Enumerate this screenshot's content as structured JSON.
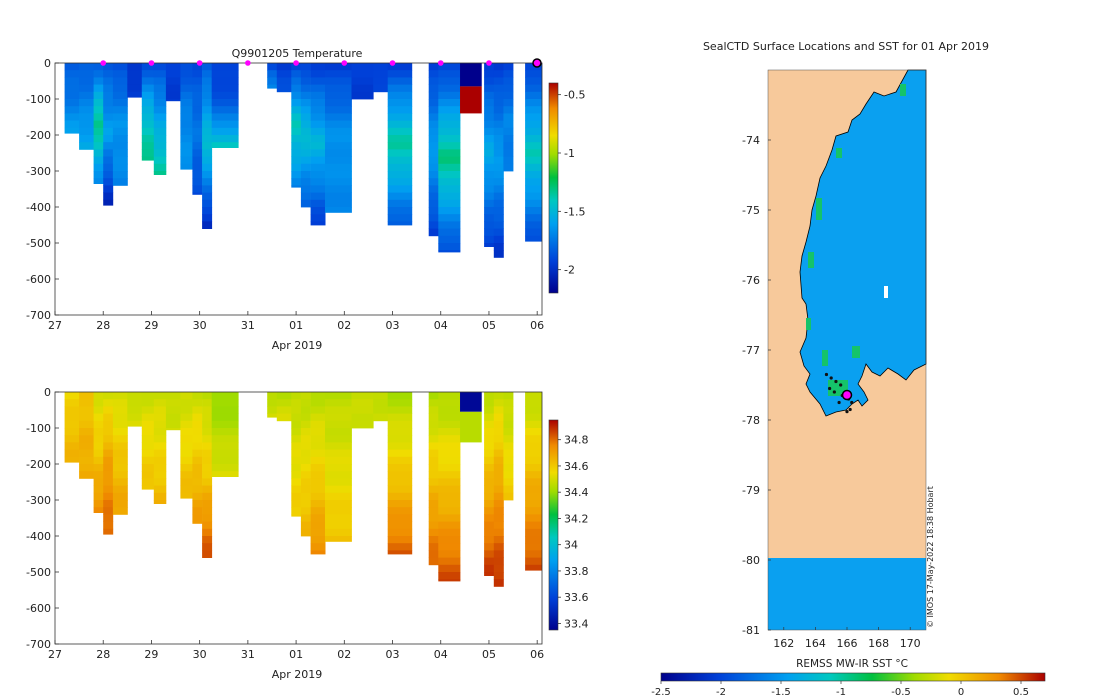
{
  "colors": {
    "land": "#f7c99b",
    "ocean": "#0aa0f0",
    "ice_edge": "#15c36a",
    "marker": "#ff00ff",
    "deep_red": "#aa0000",
    "deep_blue": "#00008c"
  },
  "chart_data": [
    {
      "id": "temperature",
      "type": "heatmap",
      "title": "Q9901205  Temperature",
      "xlabel": "Apr 2019",
      "ylabel": "",
      "xlim": [
        27,
        37.1
      ],
      "ylim": [
        -700,
        0
      ],
      "xticks": [
        27,
        28,
        29,
        30,
        31,
        32,
        33,
        34,
        35,
        36,
        37
      ],
      "xticklabels": [
        "27",
        "28",
        "29",
        "30",
        "31",
        "01",
        "02",
        "03",
        "04",
        "05",
        "06"
      ],
      "yticks": [
        0,
        -100,
        -200,
        -300,
        -400,
        -500,
        -600,
        -700
      ],
      "yticklabels": [
        "0",
        "-100",
        "-200",
        "-300",
        "-400",
        "-500",
        "-600",
        "-700"
      ],
      "colorbar": {
        "min": -2.2,
        "max": -0.4,
        "ticks": [
          -0.5,
          -1,
          -1.5,
          -2
        ],
        "ticklabels": [
          "-0.5",
          "-1",
          "-1.5",
          "-2"
        ]
      },
      "surface_markers_x": [
        28,
        29,
        30,
        31,
        32,
        33,
        34,
        35,
        36,
        37.02
      ],
      "profiles": [
        {
          "x0": 27.2,
          "x1": 27.5,
          "depth": 195,
          "surf": -1.85,
          "mid": -1.75,
          "bottom": -1.6
        },
        {
          "x0": 27.5,
          "x1": 27.8,
          "depth": 240,
          "surf": -1.85,
          "mid": -1.7,
          "bottom": -1.55
        },
        {
          "x0": 27.8,
          "x1": 28.0,
          "depth": 335,
          "surf": -1.85,
          "mid": -1.3,
          "bottom": -1.7
        },
        {
          "x0": 28.0,
          "x1": 28.2,
          "depth": 395,
          "surf": -1.85,
          "mid": -1.6,
          "bottom": -2.05
        },
        {
          "x0": 28.2,
          "x1": 28.5,
          "depth": 340,
          "surf": -1.9,
          "mid": -1.65,
          "bottom": -1.7
        },
        {
          "x0": 28.5,
          "x1": 28.8,
          "depth": 95,
          "surf": -2.0,
          "mid": -1.95,
          "bottom": -1.95
        },
        {
          "x0": 28.8,
          "x1": 29.05,
          "depth": 270,
          "surf": -1.9,
          "mid": -1.5,
          "bottom": -1.3
        },
        {
          "x0": 29.05,
          "x1": 29.3,
          "depth": 310,
          "surf": -1.9,
          "mid": -1.6,
          "bottom": -1.35
        },
        {
          "x0": 29.3,
          "x1": 29.6,
          "depth": 105,
          "surf": -1.95,
          "mid": -1.95,
          "bottom": -1.95
        },
        {
          "x0": 29.6,
          "x1": 29.85,
          "depth": 295,
          "surf": -1.9,
          "mid": -1.7,
          "bottom": -1.65
        },
        {
          "x0": 29.85,
          "x1": 30.05,
          "depth": 365,
          "surf": -1.9,
          "mid": -1.75,
          "bottom": -1.9
        },
        {
          "x0": 30.05,
          "x1": 30.25,
          "depth": 460,
          "surf": -1.85,
          "mid": -1.45,
          "bottom": -2.05
        },
        {
          "x0": 30.25,
          "x1": 30.8,
          "depth": 235,
          "surf": -1.95,
          "mid": -1.85,
          "bottom": -1.4
        },
        {
          "x0": 31.4,
          "x1": 31.6,
          "depth": 70,
          "surf": -1.95,
          "mid": -1.75,
          "bottom": -1.7
        },
        {
          "x0": 31.6,
          "x1": 31.9,
          "depth": 80,
          "surf": -1.95,
          "mid": -1.9,
          "bottom": -1.9
        },
        {
          "x0": 31.9,
          "x1": 32.1,
          "depth": 345,
          "surf": -1.95,
          "mid": -1.4,
          "bottom": -1.7
        },
        {
          "x0": 32.1,
          "x1": 32.3,
          "depth": 400,
          "surf": -1.95,
          "mid": -1.45,
          "bottom": -1.85
        },
        {
          "x0": 32.3,
          "x1": 32.6,
          "depth": 450,
          "surf": -1.95,
          "mid": -1.5,
          "bottom": -1.95
        },
        {
          "x0": 32.6,
          "x1": 33.15,
          "depth": 415,
          "surf": -1.95,
          "mid": -1.65,
          "bottom": -1.7
        },
        {
          "x0": 33.15,
          "x1": 33.6,
          "depth": 100,
          "surf": -1.95,
          "mid": -1.95,
          "bottom": -1.95
        },
        {
          "x0": 33.6,
          "x1": 33.9,
          "depth": 80,
          "surf": -1.95,
          "mid": -1.9,
          "bottom": -1.9
        },
        {
          "x0": 33.9,
          "x1": 34.4,
          "depth": 450,
          "surf": -1.95,
          "mid": -1.35,
          "bottom": -1.85
        },
        {
          "x0": 34.75,
          "x1": 34.95,
          "depth": 480,
          "surf": -1.95,
          "mid": -1.6,
          "bottom": -1.95
        },
        {
          "x0": 34.95,
          "x1": 35.4,
          "depth": 525,
          "surf": -1.95,
          "mid": -1.3,
          "bottom": -1.9
        },
        {
          "x0": 35.9,
          "x1": 36.1,
          "depth": 510,
          "surf": -1.95,
          "mid": -1.55,
          "bottom": -1.95
        },
        {
          "x0": 36.1,
          "x1": 36.3,
          "depth": 540,
          "surf": -1.95,
          "mid": -1.6,
          "bottom": -2.0
        },
        {
          "x0": 36.3,
          "x1": 36.5,
          "depth": 300,
          "surf": -1.95,
          "mid": -1.7,
          "bottom": -1.75
        },
        {
          "x0": 36.75,
          "x1": 37.1,
          "depth": 495,
          "surf": -1.95,
          "mid": -1.4,
          "bottom": -1.9
        }
      ],
      "anomalies": [
        {
          "x0": 35.4,
          "x1": 35.85,
          "top": 0,
          "bottom": 65,
          "value": -2.2
        },
        {
          "x0": 35.4,
          "x1": 35.85,
          "top": 65,
          "bottom": 140,
          "value": -0.4
        }
      ]
    },
    {
      "id": "salinity",
      "type": "heatmap",
      "title": "",
      "xlabel": "Apr 2019",
      "ylabel": "",
      "xlim": [
        27,
        37.1
      ],
      "ylim": [
        -700,
        0
      ],
      "xticks": [
        27,
        28,
        29,
        30,
        31,
        32,
        33,
        34,
        35,
        36,
        37
      ],
      "xticklabels": [
        "27",
        "28",
        "29",
        "30",
        "31",
        "01",
        "02",
        "03",
        "04",
        "05",
        "06"
      ],
      "yticks": [
        0,
        -100,
        -200,
        -300,
        -400,
        -500,
        -600,
        -700
      ],
      "yticklabels": [
        "0",
        "-100",
        "-200",
        "-300",
        "-400",
        "-500",
        "-600",
        "-700"
      ],
      "colorbar": {
        "min": 33.35,
        "max": 34.95,
        "ticks": [
          34.8,
          34.6,
          34.4,
          34.2,
          34,
          33.8,
          33.6,
          33.4
        ],
        "ticklabels": [
          "34.8",
          "34.6",
          "34.4",
          "34.2",
          "34",
          "33.8",
          "33.6",
          "33.4"
        ]
      },
      "profiles": [
        {
          "x0": 27.2,
          "x1": 27.5,
          "depth": 195,
          "surf": 34.55,
          "mid": 34.62,
          "bottom": 34.65
        },
        {
          "x0": 27.5,
          "x1": 27.8,
          "depth": 240,
          "surf": 34.6,
          "mid": 34.65,
          "bottom": 34.68
        },
        {
          "x0": 27.8,
          "x1": 28.0,
          "depth": 335,
          "surf": 34.5,
          "mid": 34.6,
          "bottom": 34.75
        },
        {
          "x0": 28.0,
          "x1": 28.2,
          "depth": 395,
          "surf": 34.5,
          "mid": 34.7,
          "bottom": 34.82
        },
        {
          "x0": 28.2,
          "x1": 28.5,
          "depth": 340,
          "surf": 34.48,
          "mid": 34.6,
          "bottom": 34.7
        },
        {
          "x0": 28.5,
          "x1": 28.8,
          "depth": 95,
          "surf": 34.45,
          "mid": 34.5,
          "bottom": 34.52
        },
        {
          "x0": 28.8,
          "x1": 29.05,
          "depth": 270,
          "surf": 34.48,
          "mid": 34.55,
          "bottom": 34.62
        },
        {
          "x0": 29.05,
          "x1": 29.3,
          "depth": 310,
          "surf": 34.48,
          "mid": 34.55,
          "bottom": 34.65
        },
        {
          "x0": 29.3,
          "x1": 29.6,
          "depth": 105,
          "surf": 34.45,
          "mid": 34.48,
          "bottom": 34.5
        },
        {
          "x0": 29.6,
          "x1": 29.85,
          "depth": 295,
          "surf": 34.48,
          "mid": 34.55,
          "bottom": 34.65
        },
        {
          "x0": 29.85,
          "x1": 30.05,
          "depth": 365,
          "surf": 34.48,
          "mid": 34.6,
          "bottom": 34.72
        },
        {
          "x0": 30.05,
          "x1": 30.25,
          "depth": 460,
          "surf": 34.45,
          "mid": 34.6,
          "bottom": 34.85
        },
        {
          "x0": 30.25,
          "x1": 30.8,
          "depth": 235,
          "surf": 34.38,
          "mid": 34.45,
          "bottom": 34.52
        },
        {
          "x0": 31.4,
          "x1": 31.6,
          "depth": 70,
          "surf": 34.45,
          "mid": 34.48,
          "bottom": 34.5
        },
        {
          "x0": 31.6,
          "x1": 31.9,
          "depth": 80,
          "surf": 34.45,
          "mid": 34.48,
          "bottom": 34.5
        },
        {
          "x0": 31.9,
          "x1": 32.1,
          "depth": 345,
          "surf": 34.45,
          "mid": 34.52,
          "bottom": 34.6
        },
        {
          "x0": 32.1,
          "x1": 32.3,
          "depth": 400,
          "surf": 34.45,
          "mid": 34.55,
          "bottom": 34.65
        },
        {
          "x0": 32.3,
          "x1": 32.6,
          "depth": 450,
          "surf": 34.45,
          "mid": 34.58,
          "bottom": 34.75
        },
        {
          "x0": 32.6,
          "x1": 33.15,
          "depth": 415,
          "surf": 34.45,
          "mid": 34.52,
          "bottom": 34.62
        },
        {
          "x0": 33.15,
          "x1": 33.6,
          "depth": 100,
          "surf": 34.45,
          "mid": 34.48,
          "bottom": 34.5
        },
        {
          "x0": 33.6,
          "x1": 33.9,
          "depth": 80,
          "surf": 34.45,
          "mid": 34.48,
          "bottom": 34.5
        },
        {
          "x0": 33.9,
          "x1": 34.4,
          "depth": 450,
          "surf": 34.42,
          "mid": 34.6,
          "bottom": 34.82
        },
        {
          "x0": 34.75,
          "x1": 34.95,
          "depth": 480,
          "surf": 34.42,
          "mid": 34.62,
          "bottom": 34.82
        },
        {
          "x0": 34.95,
          "x1": 35.4,
          "depth": 525,
          "surf": 34.42,
          "mid": 34.62,
          "bottom": 34.85
        },
        {
          "x0": 35.9,
          "x1": 36.1,
          "depth": 510,
          "surf": 34.45,
          "mid": 34.65,
          "bottom": 34.88
        },
        {
          "x0": 36.1,
          "x1": 36.3,
          "depth": 540,
          "surf": 34.48,
          "mid": 34.7,
          "bottom": 34.9
        },
        {
          "x0": 36.3,
          "x1": 36.5,
          "depth": 300,
          "surf": 34.45,
          "mid": 34.52,
          "bottom": 34.6
        },
        {
          "x0": 36.75,
          "x1": 37.1,
          "depth": 495,
          "surf": 34.45,
          "mid": 34.65,
          "bottom": 34.85
        }
      ],
      "anomalies": [
        {
          "x0": 35.4,
          "x1": 35.85,
          "top": 0,
          "bottom": 55,
          "value": 33.38
        },
        {
          "x0": 35.4,
          "x1": 35.85,
          "top": 55,
          "bottom": 140,
          "value": 34.45
        }
      ]
    },
    {
      "id": "sst_map",
      "type": "heatmap",
      "title": "SealCTD Surface Locations and SST for 01 Apr 2019",
      "xlabel": "",
      "ylabel": "",
      "xlim": [
        161,
        171
      ],
      "ylim": [
        -81,
        -73
      ],
      "xticks": [
        162,
        164,
        166,
        168,
        170
      ],
      "xticklabels": [
        "162",
        "164",
        "166",
        "168",
        "170"
      ],
      "yticks": [
        -74,
        -75,
        -76,
        -77,
        -78,
        -79,
        -80,
        -81
      ],
      "yticklabels": [
        "-74",
        "-75",
        "-76",
        "-77",
        "-78",
        "-79",
        "-80",
        "-81"
      ],
      "track_points": [
        [
          164.7,
          -77.35
        ],
        [
          165.0,
          -77.4
        ],
        [
          165.3,
          -77.45
        ],
        [
          165.6,
          -77.5
        ],
        [
          165.9,
          -77.6
        ],
        [
          166.1,
          -77.7
        ],
        [
          166.3,
          -77.75
        ],
        [
          165.7,
          -77.65
        ],
        [
          165.2,
          -77.6
        ],
        [
          164.9,
          -77.55
        ],
        [
          165.5,
          -77.75
        ],
        [
          166.2,
          -77.85
        ],
        [
          166.0,
          -77.88
        ]
      ],
      "current_position": [
        166.1,
        -77.65
      ],
      "credit": "© IMOS 17-May-2022 18:38 Hobart"
    }
  ],
  "sst_colorbar": {
    "label": "REMSS MW-IR SST °C",
    "min": -2.5,
    "max": 0.7,
    "ticks": [
      -2.5,
      -2,
      -1.5,
      -1,
      -0.5,
      0,
      0.5
    ],
    "ticklabels": [
      "-2.5",
      "-2",
      "-1.5",
      "-1",
      "-0.5",
      "0",
      "0.5"
    ]
  }
}
